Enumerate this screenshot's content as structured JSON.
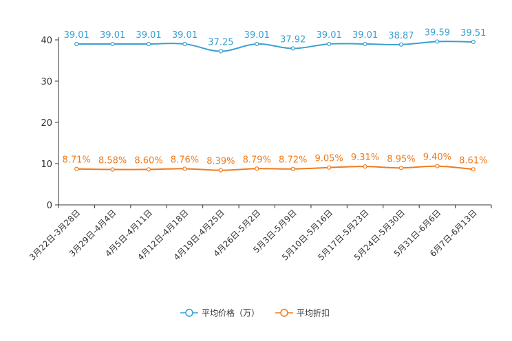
{
  "chart_data": {
    "type": "line",
    "title": "",
    "xlabel": "",
    "ylabel": "",
    "ylim": [
      0,
      40
    ],
    "yticks": [
      0,
      10,
      20,
      30,
      40
    ],
    "grid": false,
    "legend_position": "bottom-center",
    "categories": [
      "3月22日-3月28日",
      "3月29日-4月4日",
      "4月5日-4月11日",
      "4月12日-4月18日",
      "4月19日-4月25日",
      "4月26日-5月2日",
      "5月3日-5月9日",
      "5月10日-5月16日",
      "5月17日-5月23日",
      "5月24日-5月30日",
      "5月31日-6月6日",
      "6月7日-6月13日"
    ],
    "series": [
      {
        "name": "平均价格（万）",
        "color": "#3a9fd0",
        "values": [
          39.01,
          39.01,
          39.01,
          39.01,
          37.25,
          39.01,
          37.92,
          39.01,
          39.01,
          38.87,
          39.59,
          39.51
        ],
        "labels": [
          "39.01",
          "39.01",
          "39.01",
          "39.01",
          "37.25",
          "39.01",
          "37.92",
          "39.01",
          "39.01",
          "38.87",
          "39.59",
          "39.51"
        ]
      },
      {
        "name": "平均折扣",
        "color": "#f07a1a",
        "values": [
          8.71,
          8.58,
          8.6,
          8.76,
          8.39,
          8.79,
          8.72,
          9.05,
          9.31,
          8.95,
          9.4,
          8.61
        ],
        "labels": [
          "8.71%",
          "8.58%",
          "8.60%",
          "8.76%",
          "8.39%",
          "8.79%",
          "8.72%",
          "9.05%",
          "9.31%",
          "8.95%",
          "9.40%",
          "8.61%"
        ]
      }
    ]
  }
}
